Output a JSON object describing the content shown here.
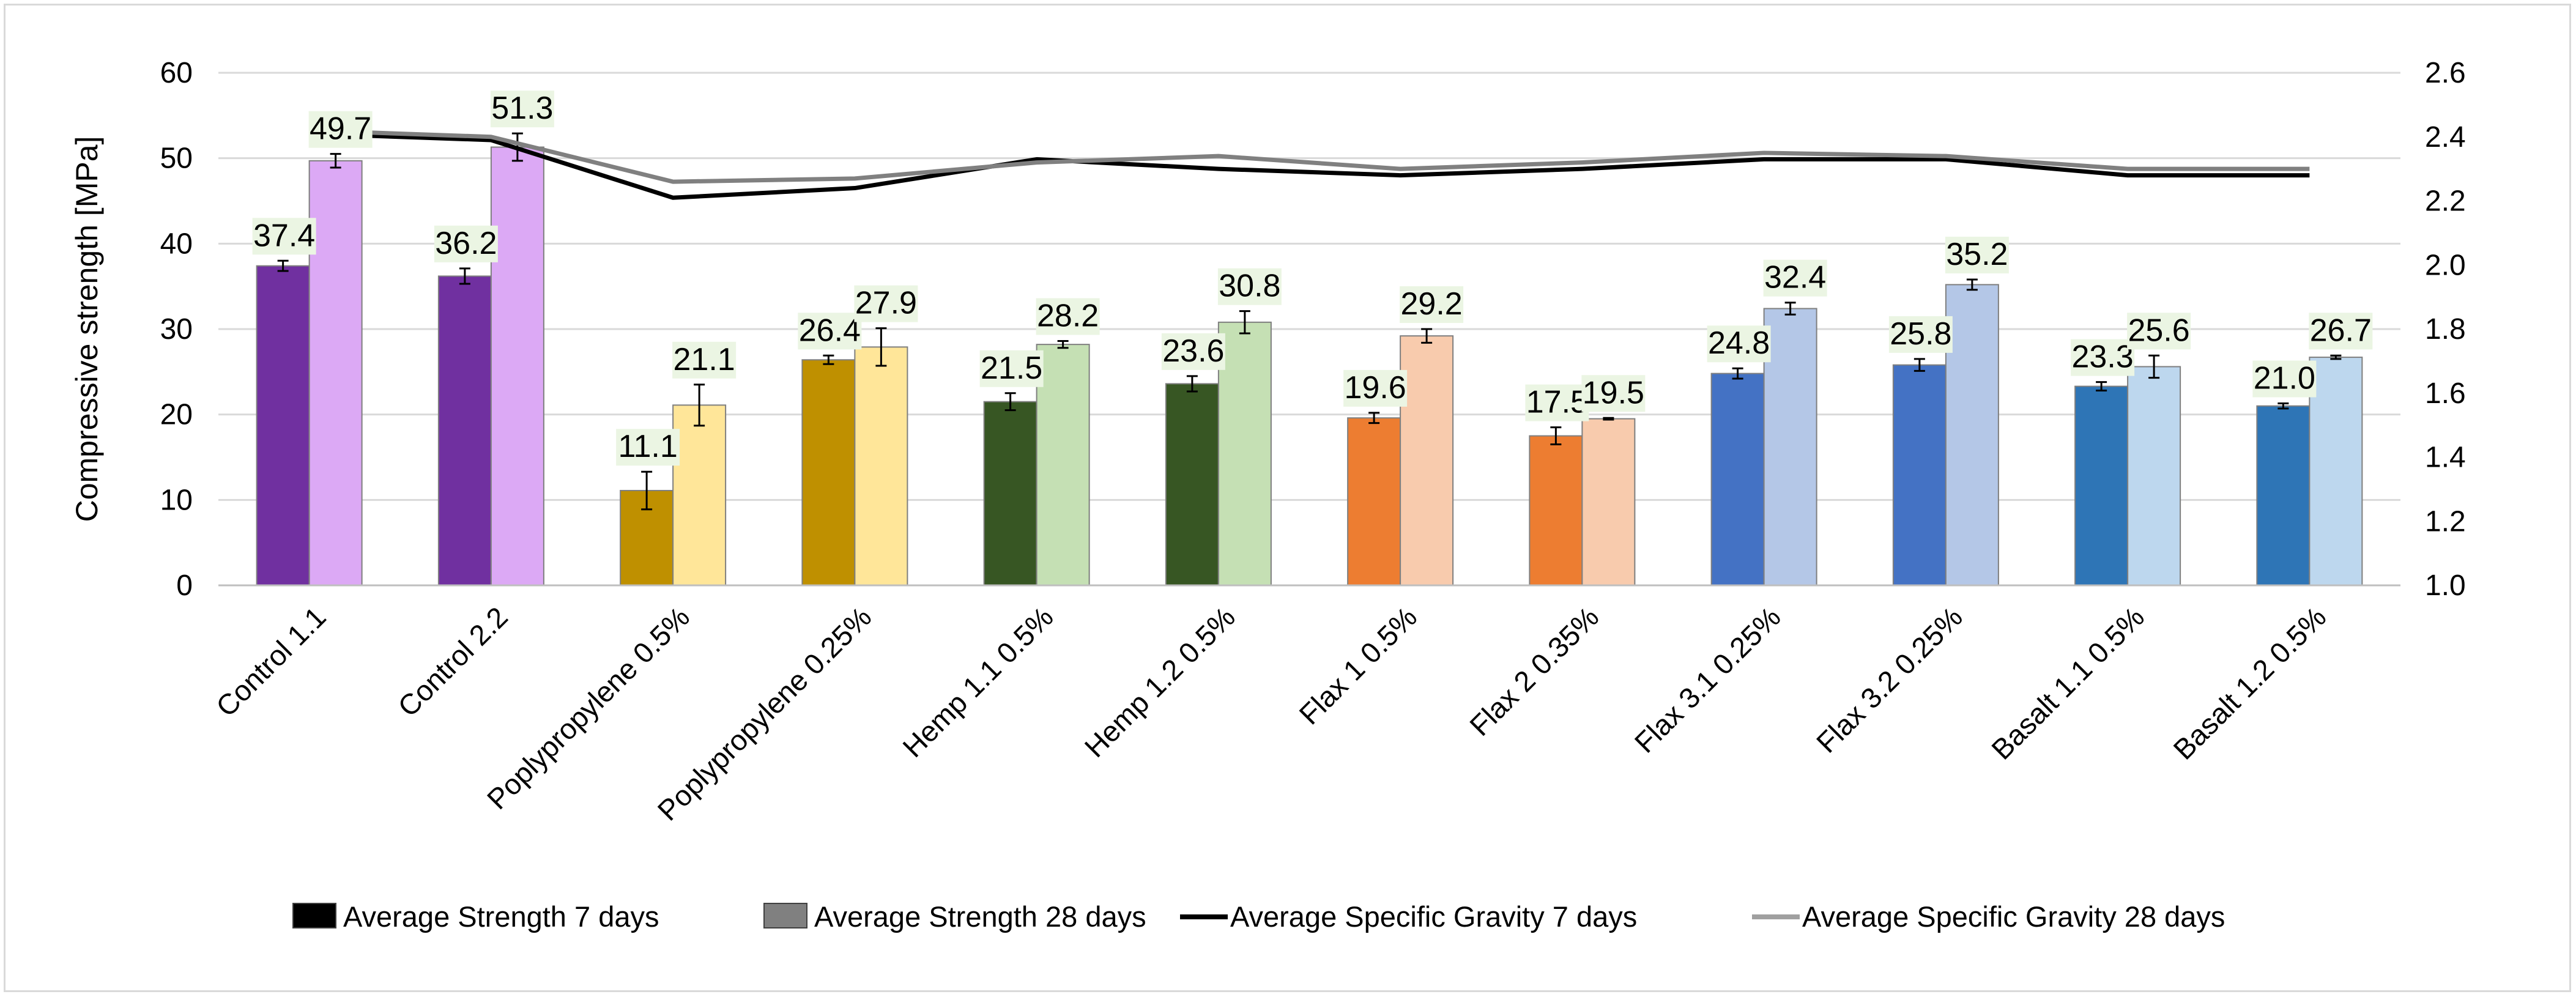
{
  "chart_data": {
    "type": "bar",
    "title": "",
    "categories": [
      "Control 1.1",
      "Control 2.2",
      "Poplypropylene 0.5%",
      "Poplypropylene 0.25%",
      "Hemp 1.1 0.5%",
      "Hemp 1.2 0.5%",
      "Flax 1 0.5%",
      "Flax 2 0.35%",
      "Flax 3.1 0.25%",
      "Flax 3.2 0.25%",
      "Basalt 1.1 0.5%",
      "Basalt 1.2 0.5%"
    ],
    "ylabel": "Compressive strength [MPa]",
    "ylim": [
      0,
      60
    ],
    "yticks": [
      "0",
      "10",
      "20",
      "30",
      "40",
      "50",
      "60"
    ],
    "y2lim": [
      1.0,
      2.6
    ],
    "y2ticks": [
      "1.0",
      "1.2",
      "1.4",
      "1.6",
      "1.8",
      "2.0",
      "2.2",
      "2.4",
      "2.6"
    ],
    "series": [
      {
        "name": "Average Strength 7 days",
        "kind": "bar",
        "values": [
          37.4,
          36.2,
          11.1,
          26.4,
          21.5,
          23.6,
          19.6,
          17.5,
          24.8,
          25.8,
          23.3,
          21.0
        ],
        "labels": [
          "37.4",
          "36.2",
          "11.1",
          "26.4",
          "21.5",
          "23.6",
          "19.6",
          "17.5",
          "24.8",
          "25.8",
          "23.3",
          "21.0"
        ],
        "errors": [
          0.6,
          0.9,
          2.2,
          0.5,
          1.0,
          0.9,
          0.6,
          1.0,
          0.6,
          0.7,
          0.5,
          0.3
        ],
        "colors": [
          "#7030a0",
          "#7030a0",
          "#bf9000",
          "#bf9000",
          "#375623",
          "#375623",
          "#ed7d31",
          "#ed7d31",
          "#4472c4",
          "#4472c4",
          "#2e75b6",
          "#2e75b6"
        ]
      },
      {
        "name": "Average Strength 28 days",
        "kind": "bar",
        "values": [
          49.7,
          51.3,
          21.1,
          27.9,
          28.2,
          30.8,
          29.2,
          19.5,
          32.4,
          35.2,
          25.6,
          26.7
        ],
        "labels": [
          "49.7",
          "51.3",
          "21.1",
          "27.9",
          "28.2",
          "30.8",
          "29.2",
          "19.5",
          "32.4",
          "35.2",
          "25.6",
          "26.7"
        ],
        "errors": [
          0.8,
          1.6,
          2.4,
          2.2,
          0.4,
          1.3,
          0.8,
          0.1,
          0.7,
          0.6,
          1.3,
          0.2
        ],
        "colors": [
          "#dca9f5",
          "#dca9f5",
          "#ffe699",
          "#ffe699",
          "#c5e0b4",
          "#c5e0b4",
          "#f8cbad",
          "#f8cbad",
          "#b4c7e7",
          "#b4c7e7",
          "#bdd7ee",
          "#bdd7ee"
        ]
      },
      {
        "name": "Average Specific Gravity 7 days",
        "kind": "line",
        "axis": "secondary",
        "color": "#000000",
        "values": [
          2.41,
          2.39,
          2.21,
          2.24,
          2.33,
          2.3,
          2.28,
          2.3,
          2.33,
          2.33,
          2.28,
          2.28
        ]
      },
      {
        "name": "Average Specific Gravity 28 days",
        "kind": "line",
        "axis": "secondary",
        "color": "#808080",
        "values": [
          2.42,
          2.4,
          2.26,
          2.27,
          2.32,
          2.34,
          2.3,
          2.32,
          2.35,
          2.34,
          2.3,
          2.3
        ]
      }
    ],
    "legend": {
      "position": "bottom",
      "items": [
        {
          "label": "Average Strength 7 days",
          "swatch": "box",
          "color": "#000000"
        },
        {
          "label": "Average Strength 28 days",
          "swatch": "box",
          "color": "#808080"
        },
        {
          "label": "Average Specific Gravity 7 days",
          "swatch": "line",
          "color": "#000000"
        },
        {
          "label": "Average Specific Gravity 28 days",
          "swatch": "line",
          "color": "#a0a0a0"
        }
      ]
    },
    "label_box_color": "#ebf5e3",
    "grid": true,
    "grid_color": "#d9d9d9"
  }
}
